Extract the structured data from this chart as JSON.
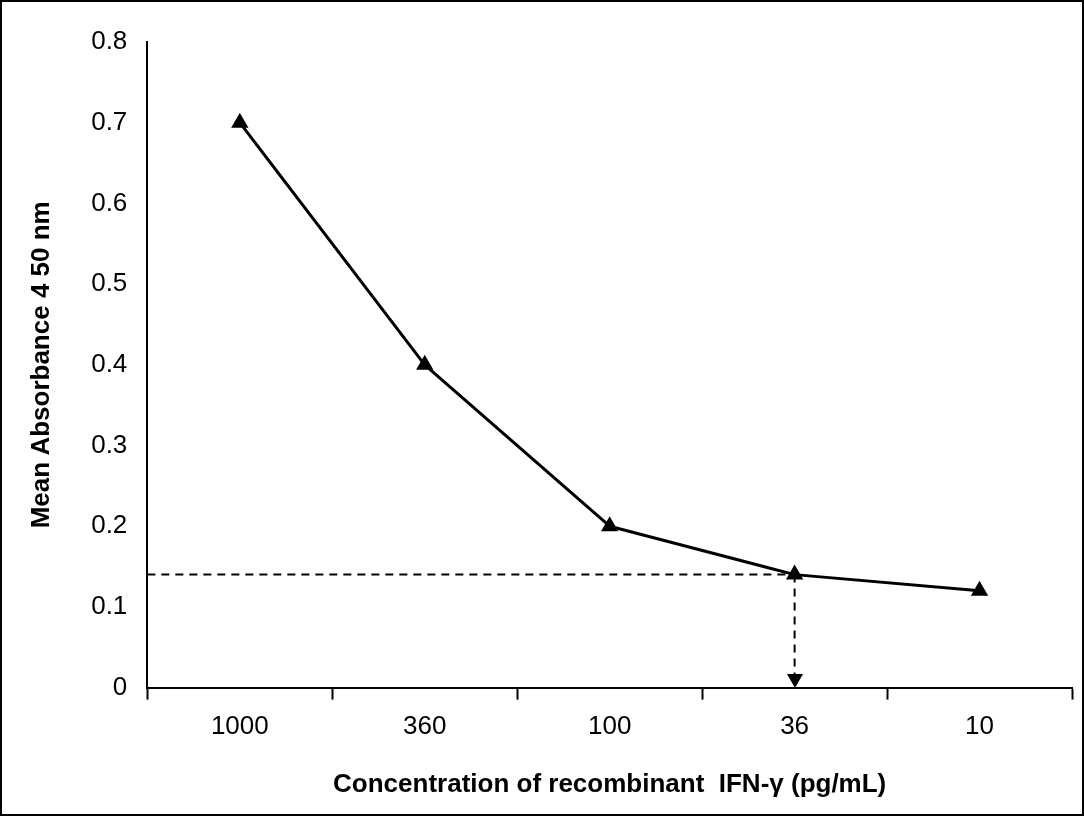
{
  "chart_data": {
    "type": "line",
    "xlabel": "Concentration of recombinant  IFN-γ (pg/mL)",
    "ylabel": "Mean Absorbance 4 50 nm",
    "categories": [
      "1000",
      "360",
      "100",
      "36",
      "10"
    ],
    "series": [
      {
        "color": "#000000",
        "values": [
          0.7,
          0.4,
          0.2,
          0.14,
          0.12
        ]
      }
    ],
    "ylim": [
      0,
      0.8
    ],
    "yticks": [
      0,
      0.1,
      0.2,
      0.3,
      0.4,
      0.5,
      0.6,
      0.7,
      0.8
    ],
    "ref_lines": [
      {
        "axis": "y",
        "value": 0.14,
        "line_style": "dashed",
        "color": "#000000"
      },
      {
        "axis": "x",
        "value": "36",
        "line_style": "dashed",
        "color": "#000000"
      }
    ],
    "marker": "triangle",
    "line_style": "solid",
    "grid": false,
    "legend": false
  }
}
